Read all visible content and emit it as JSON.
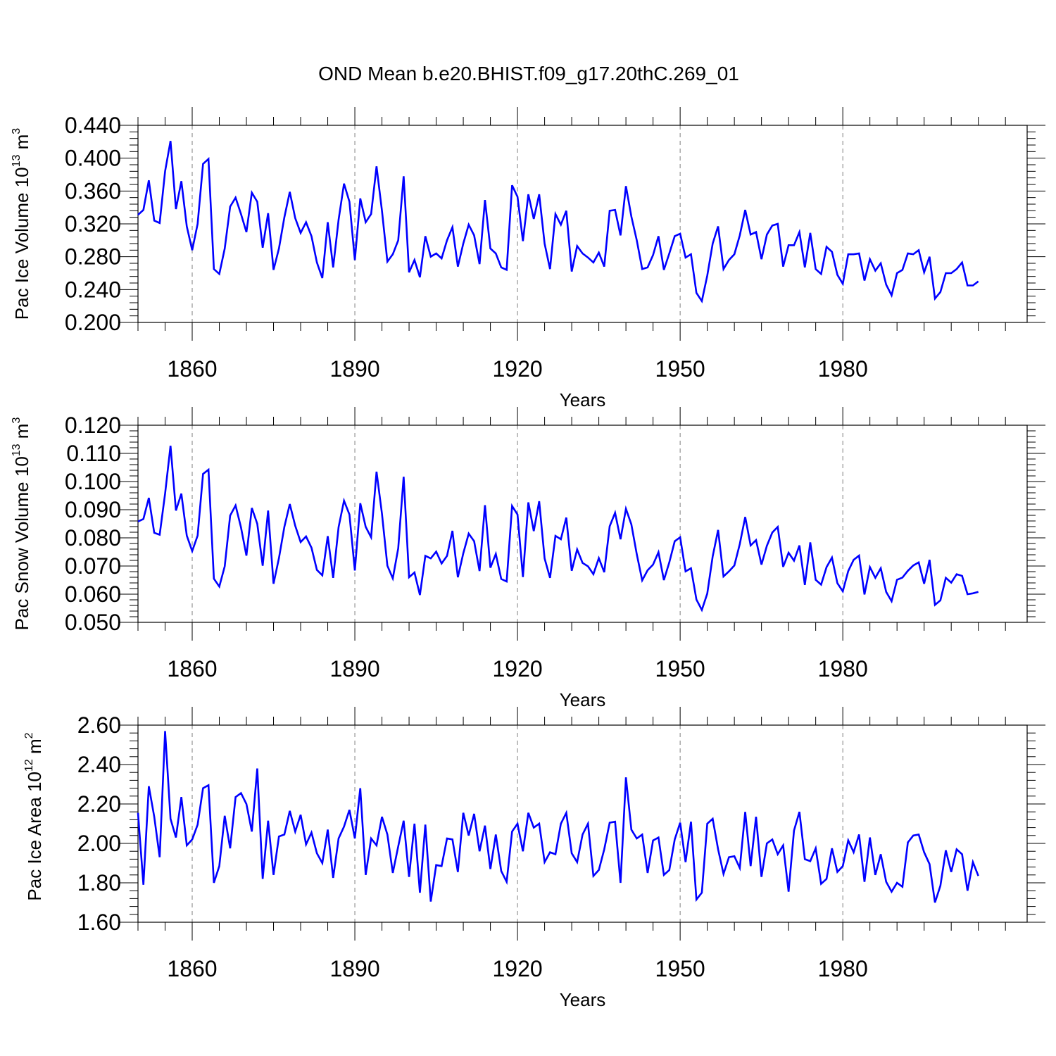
{
  "figure": {
    "title": "OND Mean b.e20.BHIST.f09_g17.20thC.269_01",
    "line_color": "#0000ff",
    "grid_color": "#808080"
  },
  "chart_data": [
    {
      "type": "line",
      "name": "pac-ice-volume",
      "ylabel": "Pac Ice Volume 10",
      "ylabel_exp": "13",
      "ylabel_unit": " m",
      "ylabel_unit_exp": "3",
      "xlabel": "Years",
      "xlim": [
        1850,
        2014
      ],
      "ylim": [
        0.2,
        0.44
      ],
      "yticks": [
        0.2,
        0.24,
        0.28,
        0.32,
        0.36,
        0.4,
        0.44
      ],
      "ytick_labels": [
        "0.200",
        "0.240",
        "0.280",
        "0.320",
        "0.360",
        "0.400",
        "0.440"
      ],
      "xticks": [
        1860,
        1890,
        1920,
        1950,
        1980
      ],
      "xtick_labels": [
        "1860",
        "1890",
        "1920",
        "1950",
        "1980"
      ],
      "x_start": 1850,
      "values": [
        0.331,
        0.337,
        0.373,
        0.324,
        0.321,
        0.384,
        0.421,
        0.338,
        0.372,
        0.317,
        0.288,
        0.32,
        0.393,
        0.399,
        0.265,
        0.259,
        0.29,
        0.341,
        0.352,
        0.332,
        0.31,
        0.358,
        0.347,
        0.291,
        0.333,
        0.264,
        0.29,
        0.328,
        0.359,
        0.327,
        0.309,
        0.322,
        0.305,
        0.273,
        0.254,
        0.322,
        0.267,
        0.325,
        0.369,
        0.347,
        0.276,
        0.351,
        0.322,
        0.332,
        0.39,
        0.336,
        0.274,
        0.283,
        0.3,
        0.378,
        0.261,
        0.276,
        0.255,
        0.305,
        0.28,
        0.284,
        0.278,
        0.3,
        0.316,
        0.268,
        0.296,
        0.319,
        0.306,
        0.271,
        0.349,
        0.29,
        0.284,
        0.267,
        0.264,
        0.367,
        0.353,
        0.299,
        0.356,
        0.326,
        0.356,
        0.296,
        0.265,
        0.332,
        0.319,
        0.336,
        0.262,
        0.293,
        0.284,
        0.279,
        0.273,
        0.285,
        0.268,
        0.336,
        0.337,
        0.306,
        0.366,
        0.329,
        0.3,
        0.265,
        0.267,
        0.282,
        0.305,
        0.264,
        0.284,
        0.305,
        0.308,
        0.279,
        0.283,
        0.236,
        0.226,
        0.257,
        0.296,
        0.317,
        0.265,
        0.276,
        0.283,
        0.306,
        0.337,
        0.307,
        0.31,
        0.277,
        0.307,
        0.318,
        0.32,
        0.268,
        0.294,
        0.294,
        0.31,
        0.267,
        0.309,
        0.265,
        0.259,
        0.292,
        0.286,
        0.258,
        0.247,
        0.283,
        0.283,
        0.284,
        0.251,
        0.277,
        0.263,
        0.272,
        0.246,
        0.233,
        0.26,
        0.264,
        0.284,
        0.283,
        0.288,
        0.261,
        0.28,
        0.229,
        0.237,
        0.26,
        0.26,
        0.265,
        0.273,
        0.245,
        0.245,
        0.25
      ]
    },
    {
      "type": "line",
      "name": "pac-snow-volume",
      "ylabel": "Pac Snow Volume 10",
      "ylabel_exp": "13",
      "ylabel_unit": " m",
      "ylabel_unit_exp": "3",
      "xlabel": "Years",
      "xlim": [
        1850,
        2014
      ],
      "ylim": [
        0.05,
        0.12
      ],
      "yticks": [
        0.05,
        0.06,
        0.07,
        0.08,
        0.09,
        0.1,
        0.11,
        0.12
      ],
      "ytick_labels": [
        "0.050",
        "0.060",
        "0.070",
        "0.080",
        "0.090",
        "0.100",
        "0.110",
        "0.120"
      ],
      "xticks": [
        1860,
        1890,
        1920,
        1950,
        1980
      ],
      "xtick_labels": [
        "1860",
        "1890",
        "1920",
        "1950",
        "1980"
      ],
      "x_start": 1850,
      "values": [
        0.0858,
        0.0867,
        0.0942,
        0.0818,
        0.0811,
        0.0957,
        0.1127,
        0.0897,
        0.0957,
        0.0808,
        0.0753,
        0.0808,
        0.1027,
        0.1042,
        0.0655,
        0.0627,
        0.0699,
        0.0879,
        0.0915,
        0.0837,
        0.0737,
        0.0906,
        0.085,
        0.0701,
        0.0897,
        0.0637,
        0.0728,
        0.0839,
        0.092,
        0.0843,
        0.0785,
        0.0805,
        0.0765,
        0.0686,
        0.0667,
        0.0806,
        0.0658,
        0.0838,
        0.0932,
        0.0883,
        0.0684,
        0.0923,
        0.0839,
        0.0802,
        0.1035,
        0.0886,
        0.0701,
        0.0656,
        0.0763,
        0.1017,
        0.066,
        0.0677,
        0.0597,
        0.0736,
        0.0727,
        0.0751,
        0.0709,
        0.0736,
        0.0825,
        0.066,
        0.0745,
        0.0815,
        0.0788,
        0.0682,
        0.0916,
        0.0694,
        0.0743,
        0.0654,
        0.0645,
        0.0913,
        0.0883,
        0.0661,
        0.0926,
        0.0824,
        0.093,
        0.0727,
        0.0658,
        0.0807,
        0.0795,
        0.0872,
        0.0683,
        0.0759,
        0.0711,
        0.0699,
        0.0671,
        0.0728,
        0.0678,
        0.0841,
        0.0889,
        0.0795,
        0.0903,
        0.0848,
        0.0742,
        0.0649,
        0.0685,
        0.0705,
        0.0749,
        0.065,
        0.0713,
        0.0788,
        0.0802,
        0.0681,
        0.0692,
        0.0581,
        0.0544,
        0.0602,
        0.0734,
        0.0828,
        0.0663,
        0.0681,
        0.0702,
        0.0778,
        0.0874,
        0.0773,
        0.0792,
        0.0705,
        0.0772,
        0.0819,
        0.0839,
        0.0697,
        0.0747,
        0.0719,
        0.0773,
        0.0633,
        0.0784,
        0.0651,
        0.0634,
        0.0696,
        0.073,
        0.0639,
        0.061,
        0.0682,
        0.0722,
        0.0737,
        0.0599,
        0.0696,
        0.0658,
        0.0692,
        0.0608,
        0.0575,
        0.0651,
        0.0659,
        0.0683,
        0.0702,
        0.0713,
        0.0637,
        0.0722,
        0.0562,
        0.0578,
        0.0658,
        0.0641,
        0.0671,
        0.0665,
        0.06,
        0.0603,
        0.0608
      ]
    },
    {
      "type": "line",
      "name": "pac-ice-area",
      "ylabel": "Pac Ice Area 10",
      "ylabel_exp": "12",
      "ylabel_unit": " m",
      "ylabel_unit_exp": "2",
      "xlabel": "Years",
      "xlim": [
        1850,
        2014
      ],
      "ylim": [
        1.6,
        2.6
      ],
      "yticks": [
        1.6,
        1.8,
        2.0,
        2.2,
        2.4,
        2.6
      ],
      "ytick_labels": [
        "1.60",
        "1.80",
        "2.00",
        "2.20",
        "2.40",
        "2.60"
      ],
      "xticks": [
        1860,
        1890,
        1920,
        1950,
        1980
      ],
      "xtick_labels": [
        "1860",
        "1890",
        "1920",
        "1950",
        "1980"
      ],
      "x_start": 1850,
      "values": [
        2.155,
        1.79,
        2.29,
        2.135,
        1.93,
        2.57,
        2.125,
        2.03,
        2.235,
        1.99,
        2.02,
        2.095,
        2.28,
        2.295,
        1.8,
        1.885,
        2.14,
        1.975,
        2.235,
        2.255,
        2.2,
        2.06,
        2.38,
        1.82,
        2.115,
        1.84,
        2.035,
        2.045,
        2.165,
        2.06,
        2.145,
        1.995,
        2.055,
        1.95,
        1.9,
        2.07,
        1.825,
        2.025,
        2.085,
        2.17,
        2.025,
        2.28,
        1.84,
        2.025,
        1.99,
        2.135,
        2.045,
        1.85,
        1.985,
        2.115,
        1.83,
        2.1,
        1.75,
        2.095,
        1.705,
        1.89,
        1.885,
        2.025,
        2.02,
        1.855,
        2.155,
        2.04,
        2.15,
        1.96,
        2.09,
        1.87,
        2.045,
        1.86,
        1.805,
        2.06,
        2.1,
        1.96,
        2.155,
        2.08,
        2.1,
        1.905,
        1.955,
        1.945,
        2.1,
        2.155,
        1.95,
        1.905,
        2.045,
        2.1,
        1.835,
        1.865,
        1.97,
        2.105,
        2.11,
        1.8,
        2.335,
        2.07,
        2.025,
        2.045,
        1.85,
        2.015,
        2.03,
        1.84,
        1.865,
        2.02,
        2.105,
        1.905,
        2.11,
        1.715,
        1.75,
        2.1,
        2.125,
        1.97,
        1.845,
        1.93,
        1.935,
        1.875,
        2.16,
        1.885,
        2.135,
        1.83,
        2.0,
        2.02,
        1.945,
        1.99,
        1.755,
        2.065,
        2.16,
        1.92,
        1.91,
        1.975,
        1.795,
        1.82,
        1.975,
        1.855,
        1.885,
        2.015,
        1.955,
        2.045,
        1.805,
        2.03,
        1.84,
        1.945,
        1.805,
        1.755,
        1.8,
        1.78,
        2.005,
        2.04,
        2.045,
        1.955,
        1.895,
        1.7,
        1.785,
        1.965,
        1.855,
        1.97,
        1.945,
        1.76,
        1.905,
        1.835
      ]
    }
  ]
}
